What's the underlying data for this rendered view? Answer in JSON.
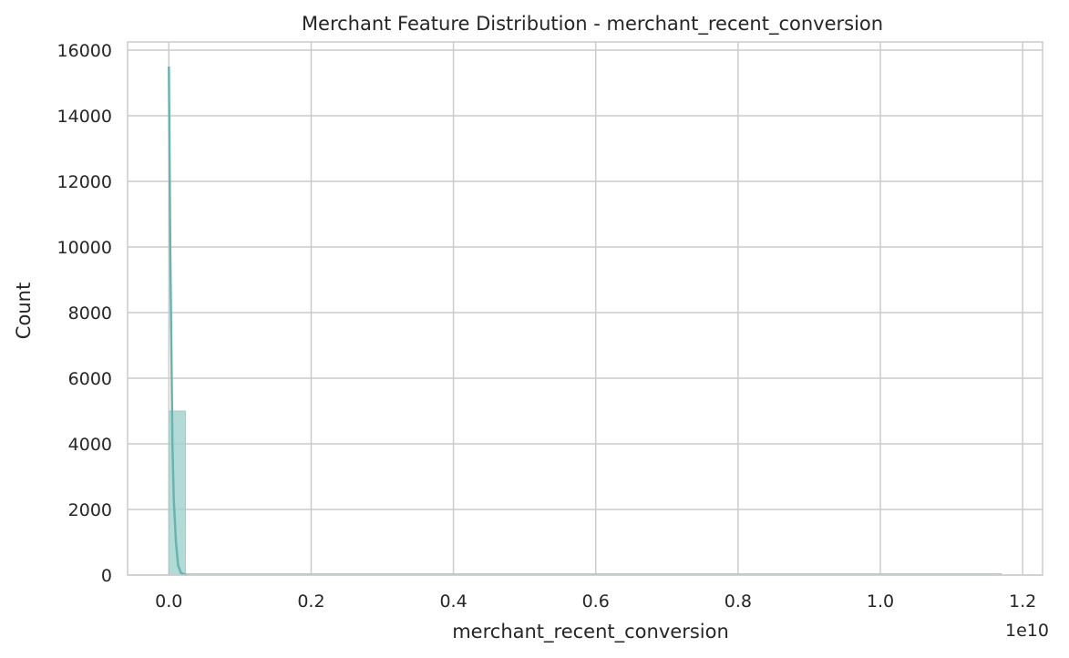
{
  "chart_data": {
    "type": "histogram",
    "title": "Merchant Feature Distribution - merchant_recent_conversion",
    "xlabel": "merchant_recent_conversion",
    "ylabel": "Count",
    "x_offset_label": "1e10",
    "xlim": [
      -0.058,
      1.228
    ],
    "ylim": [
      0,
      16250
    ],
    "x_ticks": [
      0.0,
      0.2,
      0.4,
      0.6,
      0.8,
      1.0,
      1.2
    ],
    "x_tick_labels": [
      "0.0",
      "0.2",
      "0.4",
      "0.6",
      "0.8",
      "1.0",
      "1.2"
    ],
    "y_ticks": [
      0,
      2000,
      4000,
      6000,
      8000,
      10000,
      12000,
      14000,
      16000
    ],
    "y_tick_labels": [
      "0",
      "2000",
      "4000",
      "6000",
      "8000",
      "10000",
      "12000",
      "14000",
      "16000"
    ],
    "grid": true,
    "bars_color": "#9ccfcc",
    "kde_color": "#6bb3ae",
    "bins": [
      {
        "x0": 0.0,
        "x1": 0.0234,
        "count": 5000
      },
      {
        "x0": 0.0234,
        "x1": 1.17,
        "count": 40
      }
    ],
    "kde": [
      {
        "x": 0.0,
        "y": 15500
      },
      {
        "x": 0.002,
        "y": 10000
      },
      {
        "x": 0.005,
        "y": 4000
      },
      {
        "x": 0.007,
        "y": 2300
      },
      {
        "x": 0.01,
        "y": 1000
      },
      {
        "x": 0.013,
        "y": 300
      },
      {
        "x": 0.017,
        "y": 60
      },
      {
        "x": 0.025,
        "y": 0
      }
    ]
  }
}
